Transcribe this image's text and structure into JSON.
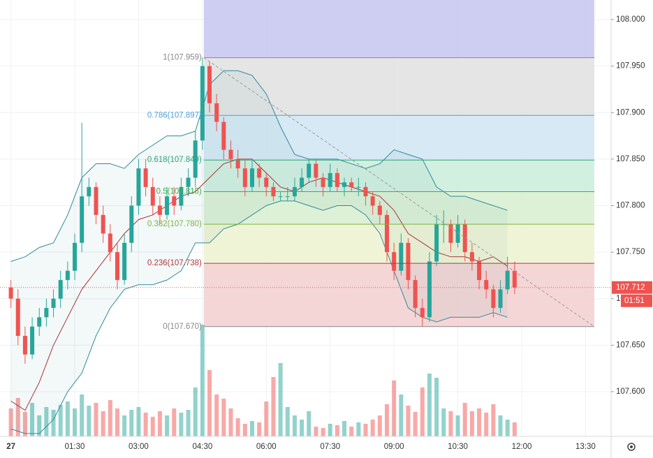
{
  "chart_data": {
    "type": "candlestick",
    "xlim": [
      "00:00",
      "14:00"
    ],
    "xticks": [
      {
        "value": "00:00",
        "label": "27"
      },
      "01:30",
      "03:00",
      "04:30",
      "06:00",
      "07:30",
      "09:00",
      "10:30",
      "12:00",
      "13:30"
    ],
    "ylim": [
      107.552,
      108.021
    ],
    "yticks": [
      {
        "value": 107.6,
        "label": "107.600"
      },
      {
        "value": 107.65,
        "label": "107.650"
      },
      {
        "value": 107.7,
        "label": "107.700"
      },
      {
        "value": 107.75,
        "label": "107.750"
      },
      {
        "value": 107.8,
        "label": "107.800"
      },
      {
        "value": 107.85,
        "label": "107.850"
      },
      {
        "value": 107.9,
        "label": "107.900"
      },
      {
        "value": 107.95,
        "label": "107.950"
      },
      {
        "value": 108.0,
        "label": "108.000"
      }
    ],
    "grid": true,
    "up_color": "#26a69a",
    "down_color": "#ef5350",
    "x": [
      "00:00",
      "00:10",
      "00:20",
      "00:30",
      "00:40",
      "00:50",
      "01:00",
      "01:10",
      "01:20",
      "01:30",
      "01:40",
      "01:50",
      "02:00",
      "02:10",
      "02:20",
      "02:30",
      "02:40",
      "02:50",
      "03:00",
      "03:10",
      "03:20",
      "03:30",
      "03:40",
      "03:50",
      "04:00",
      "04:10",
      "04:20",
      "04:30",
      "04:40",
      "04:50",
      "05:00",
      "05:10",
      "05:20",
      "05:30",
      "05:40",
      "05:50",
      "06:00",
      "06:10",
      "06:20",
      "06:30",
      "06:40",
      "06:50",
      "07:00",
      "07:10",
      "07:20",
      "07:30",
      "07:40",
      "07:50",
      "08:00",
      "08:10",
      "08:20",
      "08:30",
      "08:40",
      "08:50",
      "09:00",
      "09:10",
      "09:20",
      "09:30",
      "09:40",
      "09:50",
      "10:00",
      "10:10",
      "10:20",
      "10:30",
      "10:40",
      "10:50",
      "11:00",
      "11:10",
      "11:20",
      "11:30",
      "11:40",
      "11:50"
    ],
    "ohlc": [
      [
        107.712,
        107.72,
        107.69,
        107.7
      ],
      [
        107.7,
        107.71,
        107.65,
        107.66
      ],
      [
        107.66,
        107.67,
        107.63,
        107.64
      ],
      [
        107.64,
        107.68,
        107.635,
        107.67
      ],
      [
        107.67,
        107.69,
        107.66,
        107.68
      ],
      [
        107.68,
        107.7,
        107.67,
        107.69
      ],
      [
        107.69,
        107.71,
        107.68,
        107.7
      ],
      [
        107.7,
        107.73,
        107.69,
        107.72
      ],
      [
        107.72,
        107.74,
        107.71,
        107.73
      ],
      [
        107.73,
        107.77,
        107.72,
        107.76
      ],
      [
        107.76,
        107.889,
        107.75,
        107.81
      ],
      [
        107.81,
        107.83,
        107.8,
        107.82
      ],
      [
        107.82,
        107.825,
        107.78,
        107.79
      ],
      [
        107.79,
        107.8,
        107.76,
        107.77
      ],
      [
        107.77,
        107.78,
        107.74,
        107.75
      ],
      [
        107.75,
        107.76,
        107.71,
        107.72
      ],
      [
        107.72,
        107.77,
        107.715,
        107.76
      ],
      [
        107.76,
        107.81,
        107.75,
        107.8
      ],
      [
        107.8,
        107.85,
        107.79,
        107.84
      ],
      [
        107.84,
        107.85,
        107.81,
        107.82
      ],
      [
        107.82,
        107.83,
        107.79,
        107.8
      ],
      [
        107.8,
        107.81,
        107.78,
        107.79
      ],
      [
        107.79,
        107.82,
        107.785,
        107.81
      ],
      [
        107.81,
        107.82,
        107.79,
        107.8
      ],
      [
        107.8,
        107.83,
        107.795,
        107.82
      ],
      [
        107.82,
        107.84,
        107.81,
        107.83
      ],
      [
        107.83,
        107.88,
        107.82,
        107.87
      ],
      [
        107.87,
        107.959,
        107.86,
        107.95
      ],
      [
        107.95,
        107.955,
        107.9,
        107.91
      ],
      [
        107.91,
        107.92,
        107.88,
        107.89
      ],
      [
        107.89,
        107.895,
        107.85,
        107.86
      ],
      [
        107.86,
        107.87,
        107.84,
        107.85
      ],
      [
        107.85,
        107.86,
        107.83,
        107.84
      ],
      [
        107.84,
        107.85,
        107.81,
        107.82
      ],
      [
        107.82,
        107.85,
        107.815,
        107.84
      ],
      [
        107.84,
        107.845,
        107.82,
        107.83
      ],
      [
        107.83,
        107.835,
        107.81,
        107.82
      ],
      [
        107.82,
        107.825,
        107.805,
        107.81
      ],
      [
        107.81,
        107.815,
        107.805,
        107.81
      ],
      [
        107.81,
        107.82,
        107.805,
        107.81
      ],
      [
        107.81,
        107.83,
        107.805,
        107.82
      ],
      [
        107.82,
        107.84,
        107.815,
        107.83
      ],
      [
        107.83,
        107.85,
        107.825,
        107.845
      ],
      [
        107.845,
        107.85,
        107.82,
        107.83
      ],
      [
        107.83,
        107.835,
        107.81,
        107.82
      ],
      [
        107.82,
        107.845,
        107.815,
        107.835
      ],
      [
        107.835,
        107.84,
        107.815,
        107.82
      ],
      [
        107.82,
        107.83,
        107.81,
        107.825
      ],
      [
        107.825,
        107.83,
        107.815,
        107.82
      ],
      [
        107.82,
        107.83,
        107.81,
        107.82
      ],
      [
        107.82,
        107.825,
        107.8,
        107.81
      ],
      [
        107.81,
        107.815,
        107.79,
        107.8
      ],
      [
        107.8,
        107.805,
        107.78,
        107.79
      ],
      [
        107.79,
        107.795,
        107.74,
        107.75
      ],
      [
        107.75,
        107.76,
        107.72,
        107.73
      ],
      [
        107.73,
        107.77,
        107.725,
        107.76
      ],
      [
        107.76,
        107.765,
        107.71,
        107.72
      ],
      [
        107.72,
        107.725,
        107.68,
        107.69
      ],
      [
        107.69,
        107.7,
        107.67,
        107.68
      ],
      [
        107.68,
        107.75,
        107.675,
        107.74
      ],
      [
        107.74,
        107.79,
        107.735,
        107.78
      ],
      [
        107.78,
        107.795,
        107.76,
        107.78
      ],
      [
        107.78,
        107.785,
        107.75,
        107.76
      ],
      [
        107.76,
        107.79,
        107.755,
        107.78
      ],
      [
        107.78,
        107.785,
        107.74,
        107.75
      ],
      [
        107.75,
        107.76,
        107.73,
        107.74
      ],
      [
        107.74,
        107.745,
        107.71,
        107.72
      ],
      [
        107.72,
        107.73,
        107.7,
        107.71
      ],
      [
        107.71,
        107.715,
        107.68,
        107.69
      ],
      [
        107.69,
        107.72,
        107.685,
        107.71
      ],
      [
        107.71,
        107.745,
        107.705,
        107.73
      ],
      [
        107.73,
        107.74,
        107.705,
        107.712
      ]
    ],
    "volume": [
      40,
      55,
      35,
      48,
      30,
      42,
      38,
      45,
      50,
      40,
      60,
      44,
      48,
      36,
      52,
      40,
      30,
      38,
      42,
      34,
      28,
      36,
      30,
      40,
      34,
      38,
      70,
      160,
      95,
      60,
      54,
      40,
      26,
      18,
      22,
      20,
      50,
      85,
      105,
      42,
      30,
      24,
      36,
      14,
      12,
      18,
      16,
      22,
      14,
      20,
      18,
      24,
      30,
      46,
      80,
      60,
      44,
      35,
      70,
      90,
      84,
      40,
      36,
      30,
      48,
      36,
      40,
      34,
      46,
      30,
      24,
      20
    ],
    "band_x": [
      "00:00",
      "00:20",
      "00:40",
      "01:00",
      "01:20",
      "01:40",
      "02:00",
      "02:20",
      "02:40",
      "03:00",
      "03:20",
      "03:40",
      "04:00",
      "04:20",
      "04:40",
      "05:00",
      "05:20",
      "05:40",
      "06:00",
      "06:20",
      "06:40",
      "07:00",
      "07:20",
      "07:40",
      "08:00",
      "08:20",
      "08:40",
      "09:00",
      "09:20",
      "09:40",
      "10:00",
      "10:20",
      "10:40",
      "11:00",
      "11:20",
      "11:40"
    ],
    "bands": [
      {
        "color": "#2e8b9a",
        "values": [
          107.74,
          107.745,
          107.755,
          107.76,
          107.79,
          107.83,
          107.845,
          107.845,
          107.84,
          107.855,
          107.865,
          107.875,
          107.875,
          107.88,
          107.93,
          107.945,
          107.945,
          107.94,
          107.92,
          107.885,
          107.855,
          107.85,
          107.85,
          107.85,
          107.845,
          107.84,
          107.845,
          107.86,
          107.855,
          107.85,
          107.82,
          107.81,
          107.81,
          107.805,
          107.8,
          107.795
        ]
      },
      {
        "color": "#2e8b9a",
        "values": [
          107.56,
          107.555,
          107.555,
          107.57,
          107.6,
          107.62,
          107.66,
          107.69,
          107.71,
          107.715,
          107.715,
          107.72,
          107.73,
          107.76,
          107.76,
          107.775,
          107.78,
          107.79,
          107.8,
          107.805,
          107.805,
          107.8,
          107.795,
          107.8,
          107.8,
          107.79,
          107.77,
          107.73,
          107.69,
          107.68,
          107.675,
          107.68,
          107.68,
          107.68,
          107.685,
          107.68
        ]
      },
      {
        "color": "#a83232",
        "values": [
          107.59,
          107.58,
          107.61,
          107.65,
          107.68,
          107.71,
          107.73,
          107.75,
          107.77,
          107.785,
          107.79,
          107.8,
          107.81,
          107.815,
          107.83,
          107.845,
          107.85,
          107.85,
          107.835,
          107.82,
          107.815,
          107.825,
          107.83,
          107.825,
          107.82,
          107.815,
          107.81,
          107.795,
          107.77,
          107.76,
          107.75,
          107.745,
          107.745,
          107.74,
          107.745,
          107.735
        ]
      }
    ],
    "fib_levels": [
      {
        "value": 107.959,
        "label": "1(107.959)",
        "color": "#888888",
        "fill": "#c9c9f2"
      },
      {
        "value": 107.897,
        "label": "0.786(107.897)",
        "color": "#4aa3d8",
        "fill": "#e2e2e2"
      },
      {
        "value": 107.849,
        "label": "0.618(107.849)",
        "color": "#2ea37a",
        "fill": "#d3e7f3"
      },
      {
        "value": 107.815,
        "label": "0.5(107.815)",
        "color": "#3fae4a",
        "fill": "#cdeedd"
      },
      {
        "value": 107.78,
        "label": "0.382(107.780)",
        "color": "#7cb342",
        "fill": "#d9f0d2"
      },
      {
        "value": 107.738,
        "label": "0.236(107.738)",
        "color": "#b03a3a",
        "fill": "#eef3d2"
      },
      {
        "value": 107.67,
        "label": "0(107.670)",
        "color": "#888888",
        "fill": "#f4d2d2"
      }
    ],
    "last_price": {
      "value": 107.712,
      "label": "107.712"
    },
    "countdown": "01:51"
  }
}
